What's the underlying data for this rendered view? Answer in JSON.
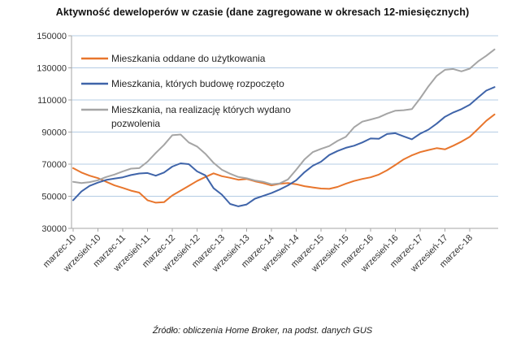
{
  "source_note": "Źródło: obliczenia Home Broker, na podst. danych GUS",
  "colors": {
    "background": "#FFFFFF",
    "gridline": "#B4CCE4",
    "axis": "#A6A6A6",
    "tick_text": "#333333",
    "legend_text": "#262626"
  },
  "chart_data": {
    "type": "line",
    "title": "Aktywność deweloperów w czasie (dane zagregowane w okresach 12-miesięcznych)",
    "xlabel": "",
    "ylabel": "",
    "ylim": [
      30000,
      150000
    ],
    "y_ticks": [
      150000,
      130000,
      110000,
      90000,
      70000,
      50000,
      30000
    ],
    "grid": "horizontal gridlines on",
    "legend_position": "top-left inside plot area",
    "x_tick_labels": [
      "marzec-10",
      "wrzesień-10",
      "marzec-11",
      "wrzesień-11",
      "marzec-12",
      "wrzesień-12",
      "marzec-13",
      "wrzesień-13",
      "marzec-14",
      "wrzesień-14",
      "marzec-15",
      "wrzesień-15",
      "marzec-16",
      "wrzesień-16",
      "marzec-17",
      "wrzesień-17",
      "marzec-18"
    ],
    "points_per_x_tick_interval": 3,
    "sampling_note": "values sampled every 2 months starting marzec-10",
    "series": [
      {
        "id": "oddane",
        "name": "Mieszkania oddane do użytkowania",
        "legend_lines": [
          "Mieszkania oddane do użytkowania"
        ],
        "color": "#E8762D",
        "values": [
          67500,
          64800,
          62800,
          61300,
          59000,
          56800,
          55200,
          53500,
          52300,
          47500,
          46000,
          46300,
          50500,
          53500,
          56500,
          59500,
          62000,
          64300,
          62500,
          61500,
          60300,
          60800,
          59300,
          58200,
          56800,
          57800,
          58200,
          57500,
          56300,
          55500,
          54800,
          54600,
          55800,
          57800,
          59500,
          60800,
          61800,
          63500,
          66200,
          69500,
          73000,
          75500,
          77500,
          78800,
          80000,
          79200,
          81500,
          84000,
          87000,
          92000,
          97000,
          101000
        ]
      },
      {
        "id": "rozpoczete",
        "name": "Mieszkania, których budowę rozpoczęto",
        "legend_lines": [
          "Mieszkania, których budowę rozpoczęto"
        ],
        "color": "#3F64A9",
        "values": [
          47500,
          53000,
          56500,
          58500,
          60200,
          61000,
          61800,
          63200,
          64200,
          64500,
          62800,
          64800,
          68500,
          70500,
          70000,
          65500,
          63000,
          55000,
          51000,
          45200,
          43700,
          44900,
          48500,
          50200,
          52000,
          54200,
          56800,
          60000,
          65000,
          69000,
          71500,
          75700,
          78200,
          80200,
          81500,
          83500,
          86000,
          85800,
          88800,
          89300,
          87300,
          85500,
          89000,
          91500,
          95200,
          99500,
          102200,
          104300,
          107000,
          111500,
          115800,
          118000
        ]
      },
      {
        "id": "pozwolenia",
        "name": "Mieszkania, na realizację których wydano pozwolenia",
        "legend_lines": [
          "Mieszkania, na realizację których wydano",
          "pozwolenia"
        ],
        "color": "#A5A5A5",
        "values": [
          59000,
          58200,
          58800,
          60000,
          62000,
          63500,
          65500,
          67200,
          67500,
          71500,
          77000,
          82000,
          88000,
          88500,
          83500,
          81000,
          76500,
          70800,
          66500,
          64000,
          62000,
          61200,
          59800,
          59000,
          57500,
          58000,
          60500,
          66500,
          73000,
          77500,
          79500,
          81300,
          84500,
          87000,
          93000,
          96500,
          97800,
          99200,
          101500,
          103300,
          103600,
          104300,
          111000,
          118500,
          125000,
          128800,
          129300,
          127800,
          129500,
          134000,
          137500,
          141500
        ]
      }
    ]
  }
}
